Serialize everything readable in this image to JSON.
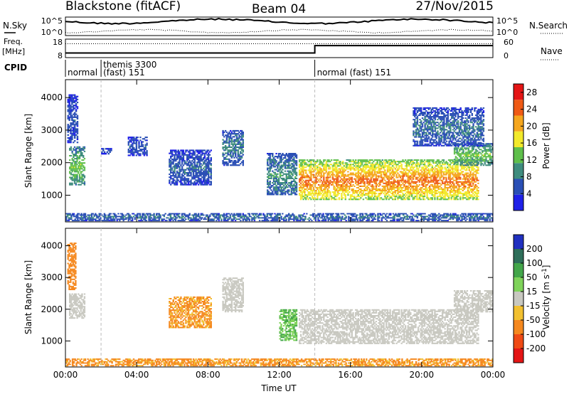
{
  "header": {
    "station": "Blackstone (fitACF)",
    "beam": "Beam 04",
    "date": "27/Nov/2015"
  },
  "status_panels": {
    "nsky_label": "N.Sky",
    "nsearch_label": "N.Search",
    "noise_ticks": [
      "10^5",
      "10^0"
    ],
    "freq_label_line1": "Freq.",
    "freq_label_line2": "[MHz]",
    "freq_ticks": [
      "18",
      "8"
    ],
    "nave_label": "Nave",
    "nave_ticks": [
      "60",
      "0"
    ],
    "cpid_label": "CPID",
    "cpid_segments": [
      {
        "start_hour": 0.0,
        "line1": "",
        "line2": "normal"
      },
      {
        "start_hour": 2.0,
        "line1": "themis 3300",
        "line2": "(fast) 151"
      },
      {
        "start_hour": 14.0,
        "line1": "",
        "line2": "normal (fast) 151"
      }
    ],
    "freq_mhz": [
      {
        "from_hour": 0.0,
        "to_hour": 14.0,
        "value": 10.5
      },
      {
        "from_hour": 14.0,
        "to_hour": 24.0,
        "value": 14.5
      }
    ],
    "nave": [
      {
        "from_hour": 0.0,
        "to_hour": 24.0,
        "value": 45
      }
    ]
  },
  "chart_data": [
    {
      "type": "heatmap",
      "panel": "power",
      "ylabel": "Slant Range [km]",
      "xlabel": "",
      "x_ticks": [
        "00:00",
        "04:00",
        "08:00",
        "12:00",
        "16:00",
        "20:00",
        "00:00"
      ],
      "y_ticks": [
        "1000",
        "2000",
        "3000",
        "4000"
      ],
      "xlim_hours": [
        0,
        24
      ],
      "ylim_km": [
        180,
        4550
      ],
      "colorbar": {
        "label": "Power [dB]",
        "ticks": [
          "4",
          "8",
          "12",
          "16",
          "20",
          "24",
          "28"
        ],
        "range": [
          0,
          30
        ],
        "colors": [
          "#1f20e8",
          "#2a4fb5",
          "#3e8c7e",
          "#5fbf4b",
          "#f2e92a",
          "#f5a61e",
          "#ef5a15",
          "#e41515"
        ]
      },
      "echo_regions": [
        {
          "t0": 0.2,
          "t1": 1.1,
          "r0": 1300,
          "r1": 2500,
          "power": 14
        },
        {
          "t0": 0.1,
          "t1": 0.7,
          "r0": 2600,
          "r1": 4100,
          "power": 6
        },
        {
          "t0": 2.0,
          "t1": 2.6,
          "r0": 2250,
          "r1": 2450,
          "power": 6
        },
        {
          "t0": 3.5,
          "t1": 4.6,
          "r0": 2200,
          "r1": 2800,
          "power": 6
        },
        {
          "t0": 5.8,
          "t1": 8.2,
          "r0": 1300,
          "r1": 2400,
          "power": 7
        },
        {
          "t0": 8.8,
          "t1": 10.0,
          "r0": 1900,
          "r1": 3000,
          "power": 9
        },
        {
          "t0": 11.3,
          "t1": 13.0,
          "r0": 1000,
          "r1": 2300,
          "power": 10
        },
        {
          "t0": 13.1,
          "t1": 23.2,
          "r0": 850,
          "r1": 2100,
          "power": 24
        },
        {
          "t0": 21.8,
          "t1": 24.0,
          "r0": 1900,
          "r1": 2600,
          "power": 14
        },
        {
          "t0": 19.5,
          "t1": 23.5,
          "r0": 2500,
          "r1": 3700,
          "power": 8
        },
        {
          "t0": 0.0,
          "t1": 24.0,
          "r0": 200,
          "r1": 450,
          "power": 8
        }
      ]
    },
    {
      "type": "heatmap",
      "panel": "velocity",
      "ylabel": "Slant Range [km]",
      "xlabel": "Time UT",
      "x_ticks": [
        "00:00",
        "04:00",
        "08:00",
        "12:00",
        "16:00",
        "20:00",
        "00:00"
      ],
      "y_ticks": [
        "1000",
        "2000",
        "3000",
        "4000"
      ],
      "xlim_hours": [
        0,
        24
      ],
      "ylim_km": [
        180,
        4550
      ],
      "colorbar": {
        "label": "Velocity [m s-1]",
        "ticks": [
          "200",
          "100",
          "50",
          "15",
          "-15",
          "-50",
          "-100",
          "-200"
        ],
        "colors": [
          "#2030c0",
          "#2e6e5a",
          "#43a64a",
          "#7fd35a",
          "#c8c8c0",
          "#f2c030",
          "#f5881e",
          "#ef4a15",
          "#e41515"
        ]
      },
      "echo_regions": [
        {
          "t0": 0.2,
          "t1": 1.1,
          "r0": 1700,
          "r1": 2500,
          "velocity": 0
        },
        {
          "t0": 0.1,
          "t1": 0.6,
          "r0": 2600,
          "r1": 4100,
          "velocity": -60
        },
        {
          "t0": 5.8,
          "t1": 8.2,
          "r0": 1400,
          "r1": 2400,
          "velocity": -40
        },
        {
          "t0": 8.8,
          "t1": 10.0,
          "r0": 1900,
          "r1": 3000,
          "velocity": 0
        },
        {
          "t0": 12.0,
          "t1": 13.0,
          "r0": 1000,
          "r1": 2000,
          "velocity": 30
        },
        {
          "t0": 13.1,
          "t1": 23.2,
          "r0": 900,
          "r1": 2000,
          "velocity": 0
        },
        {
          "t0": 21.8,
          "t1": 24.0,
          "r0": 1900,
          "r1": 2600,
          "velocity": 0
        },
        {
          "t0": 0.0,
          "t1": 24.0,
          "r0": 200,
          "r1": 450,
          "velocity": -40
        }
      ]
    }
  ]
}
